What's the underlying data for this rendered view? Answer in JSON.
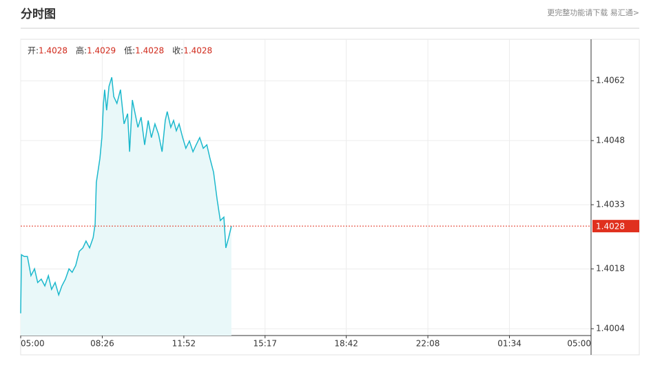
{
  "chart_data": {
    "type": "line",
    "title": "分时图",
    "link": "更完整功能请下载 易汇通>",
    "info": [
      {
        "label": "开:",
        "value": 1.4028
      },
      {
        "label": "高:",
        "value": 1.4029
      },
      {
        "label": "低:",
        "value": 1.4028
      },
      {
        "label": "收:",
        "value": 1.4028
      }
    ],
    "x": [
      0,
      2,
      9,
      17,
      26,
      35,
      43,
      52,
      61,
      70,
      78,
      87,
      96,
      104,
      113,
      122,
      130,
      139,
      148,
      157,
      165,
      174,
      183,
      188,
      191,
      200,
      205,
      209,
      212,
      217,
      223,
      230,
      235,
      243,
      252,
      261,
      270,
      275,
      282,
      289,
      296,
      304,
      313,
      322,
      330,
      339,
      348,
      357,
      365,
      370,
      379,
      386,
      393,
      400,
      409,
      417,
      426,
      435,
      443,
      452,
      461,
      470,
      478,
      487,
      496,
      504,
      513,
      518,
      525,
      532
    ],
    "series": [
      {
        "name": "price",
        "color": "#1bb8cc",
        "fill": "#e9f8f9",
        "values": [
          1.40076,
          1.40213,
          1.40209,
          1.40209,
          1.40164,
          1.4018,
          1.40148,
          1.40156,
          1.4014,
          1.40164,
          1.40132,
          1.40148,
          1.40119,
          1.4014,
          1.40156,
          1.4018,
          1.40172,
          1.40188,
          1.40221,
          1.40229,
          1.40245,
          1.40229,
          1.40253,
          1.40285,
          1.40382,
          1.40438,
          1.40487,
          1.40567,
          1.40599,
          1.40551,
          1.40607,
          1.40628,
          1.40583,
          1.40567,
          1.40599,
          1.40519,
          1.40543,
          1.40454,
          1.40575,
          1.40543,
          1.40511,
          1.40535,
          1.4047,
          1.40527,
          1.40487,
          1.40519,
          1.40495,
          1.40454,
          1.40527,
          1.40548,
          1.40511,
          1.40527,
          1.40503,
          1.40519,
          1.40487,
          1.40462,
          1.40479,
          1.40454,
          1.4047,
          1.40487,
          1.40462,
          1.4047,
          1.40438,
          1.40406,
          1.40342,
          1.40293,
          1.40301,
          1.40229,
          1.40253,
          1.4028
        ]
      }
    ],
    "ref_line": {
      "value": 1.4028,
      "color": "#e0301e"
    },
    "xlim": [
      0,
      1440
    ],
    "xticks": [
      {
        "value": 0,
        "label": "05:00"
      },
      {
        "value": 206,
        "label": "08:26"
      },
      {
        "value": 412,
        "label": "11:52"
      },
      {
        "value": 617,
        "label": "15:17"
      },
      {
        "value": 822,
        "label": "18:42"
      },
      {
        "value": 1028,
        "label": "22:08"
      },
      {
        "value": 1234,
        "label": "01:34"
      },
      {
        "value": 1440,
        "label": "05:00"
      }
    ],
    "ylim": [
      1.40024,
      1.40717
    ],
    "yticks": [
      1.4004,
      1.4018,
      1.4033,
      1.4048,
      1.4062
    ],
    "grid": true
  }
}
